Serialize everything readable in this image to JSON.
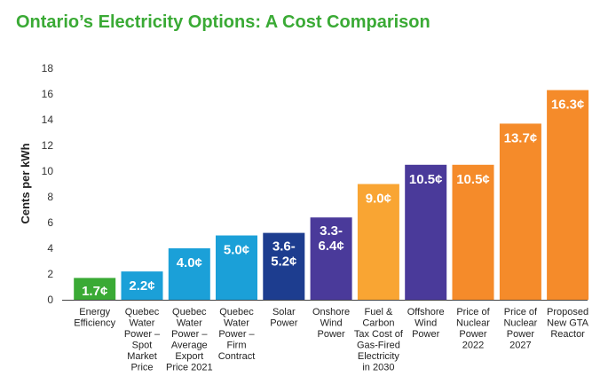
{
  "chart_data": {
    "type": "bar",
    "title": "Ontario’s Electricity Options: A Cost Comparison",
    "xlabel": "",
    "ylabel": "Cents per kWh",
    "ylim": [
      0,
      18
    ],
    "yticks": [
      0,
      2,
      4,
      6,
      8,
      10,
      12,
      14,
      16,
      18
    ],
    "grid": false,
    "legend": "none",
    "categories": [
      "Energy Efficiency",
      "Quebec Water Power – Spot Market Price",
      "Quebec Water Power – Average Export Price 2021",
      "Quebec Water Power – Firm Contract",
      "Solar Power",
      "Onshore Wind Power",
      "Fuel & Carbon Tax Cost of Gas-Fired Electricity in 2030",
      "Offshore Wind Power",
      "Price of Nuclear Power 2022",
      "Price of Nuclear Power 2027",
      "Proposed New GTA Reactor"
    ],
    "category_lines": [
      [
        "Energy",
        "Efficiency"
      ],
      [
        "Quebec",
        "Water",
        "Power –",
        "Spot",
        "Market",
        "Price"
      ],
      [
        "Quebec",
        "Water",
        "Power –",
        "Average",
        "Export",
        "Price 2021"
      ],
      [
        "Quebec",
        "Water",
        "Power –",
        "Firm",
        "Contract"
      ],
      [
        "Solar",
        "Power"
      ],
      [
        "Onshore",
        "Wind",
        "Power"
      ],
      [
        "Fuel &",
        "Carbon",
        "Tax Cost of",
        "Gas-Fired",
        "Electricity",
        "in 2030"
      ],
      [
        "Offshore",
        "Wind",
        "Power"
      ],
      [
        "Price of",
        "Nuclear",
        "Power",
        "2022"
      ],
      [
        "Price of",
        "Nuclear",
        "Power",
        "2027"
      ],
      [
        "Proposed",
        "New GTA",
        "Reactor"
      ]
    ],
    "values": [
      1.7,
      2.2,
      4.0,
      5.0,
      5.2,
      6.4,
      9.0,
      10.5,
      10.5,
      13.7,
      16.3
    ],
    "data_labels": [
      [
        "1.7¢"
      ],
      [
        "2.2¢"
      ],
      [
        "4.0¢"
      ],
      [
        "5.0¢"
      ],
      [
        "3.6-",
        "5.2¢"
      ],
      [
        "3.3-",
        "6.4¢"
      ],
      [
        "9.0¢"
      ],
      [
        "10.5¢"
      ],
      [
        "10.5¢"
      ],
      [
        "13.7¢"
      ],
      [
        "16.3¢"
      ]
    ],
    "colors": [
      "#3aaa35",
      "#1ba0d8",
      "#1ba0d8",
      "#1ba0d8",
      "#1d3d8f",
      "#4a3a9a",
      "#f9a533",
      "#4a3a9a",
      "#f58b2a",
      "#f58b2a",
      "#f58b2a"
    ],
    "axis_color": "#444444"
  }
}
